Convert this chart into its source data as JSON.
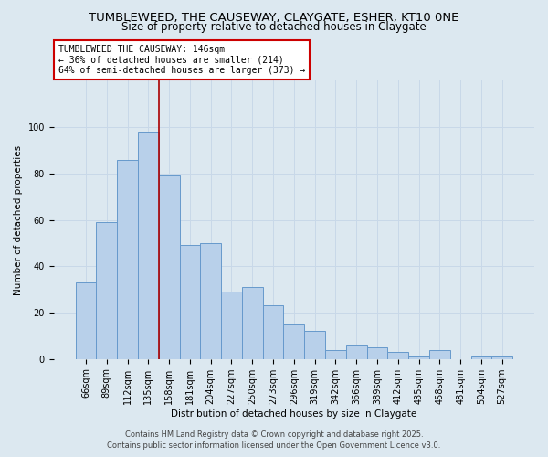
{
  "title": "TUMBLEWEED, THE CAUSEWAY, CLAYGATE, ESHER, KT10 0NE",
  "subtitle": "Size of property relative to detached houses in Claygate",
  "xlabel": "Distribution of detached houses by size in Claygate",
  "ylabel": "Number of detached properties",
  "categories": [
    "66sqm",
    "89sqm",
    "112sqm",
    "135sqm",
    "158sqm",
    "181sqm",
    "204sqm",
    "227sqm",
    "250sqm",
    "273sqm",
    "296sqm",
    "319sqm",
    "342sqm",
    "366sqm",
    "389sqm",
    "412sqm",
    "435sqm",
    "458sqm",
    "481sqm",
    "504sqm",
    "527sqm"
  ],
  "values": [
    33,
    59,
    86,
    98,
    79,
    49,
    50,
    29,
    31,
    23,
    15,
    12,
    4,
    6,
    5,
    3,
    1,
    4,
    0,
    1,
    1
  ],
  "bar_color": "#b8d0ea",
  "bar_edge_color": "#6699cc",
  "bar_width": 1.0,
  "red_line_x": 3.5,
  "annotation_line1": "TUMBLEWEED THE CAUSEWAY: 146sqm",
  "annotation_line2": "← 36% of detached houses are smaller (214)",
  "annotation_line3": "64% of semi-detached houses are larger (373) →",
  "annotation_box_color": "#ffffff",
  "annotation_box_edge": "#cc0000",
  "red_line_color": "#aa0000",
  "grid_color": "#c8d8e8",
  "bg_color": "#dce8f0",
  "footer_line1": "Contains HM Land Registry data © Crown copyright and database right 2025.",
  "footer_line2": "Contains public sector information licensed under the Open Government Licence v3.0.",
  "ylim": [
    0,
    120
  ],
  "yticks": [
    0,
    20,
    40,
    60,
    80,
    100
  ],
  "title_fontsize": 9.5,
  "subtitle_fontsize": 8.5,
  "axis_label_fontsize": 7.5,
  "tick_fontsize": 7,
  "annotation_fontsize": 7,
  "footer_fontsize": 6
}
